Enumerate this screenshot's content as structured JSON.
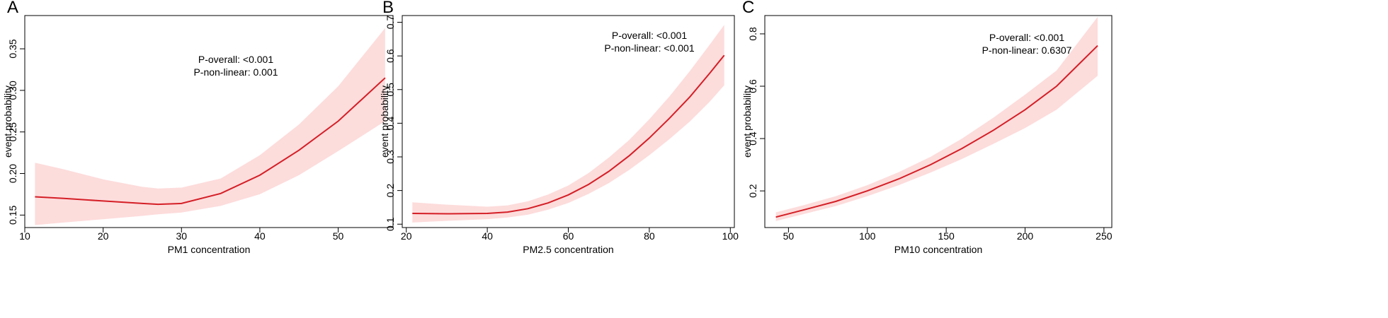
{
  "colors": {
    "line": "#d41f26",
    "band": "#fddcdc",
    "axis": "#000000"
  },
  "chart_data": [
    {
      "panel": "A",
      "type": "line",
      "xlabel": "PM1 concentration",
      "ylabel": "event probability",
      "xlim": [
        10,
        57
      ],
      "ylim": [
        0.135,
        0.39
      ],
      "xticks": [
        10,
        20,
        30,
        40,
        50
      ],
      "yticks": [
        0.15,
        0.2,
        0.25,
        0.3,
        0.35
      ],
      "ytick_labels": [
        "0.15",
        "0.20",
        "0.25",
        "0.30",
        "0.35"
      ],
      "annotations": [
        "P-overall: <0.001",
        "P-non-linear: 0.001"
      ],
      "series": [
        {
          "x": [
            11.3,
            15,
            20,
            25,
            27,
            30,
            35,
            40,
            45,
            50,
            56
          ],
          "y": [
            0.172,
            0.17,
            0.167,
            0.164,
            0.163,
            0.164,
            0.176,
            0.198,
            0.228,
            0.263,
            0.315
          ],
          "lower": [
            0.138,
            0.141,
            0.145,
            0.149,
            0.151,
            0.153,
            0.161,
            0.175,
            0.198,
            0.227,
            0.263
          ],
          "upper": [
            0.213,
            0.205,
            0.193,
            0.184,
            0.182,
            0.183,
            0.194,
            0.222,
            0.259,
            0.305,
            0.375
          ]
        }
      ]
    },
    {
      "panel": "B",
      "type": "line",
      "xlabel": "PM2.5 concentration",
      "ylabel": "event probability",
      "xlim": [
        19,
        101
      ],
      "ylim": [
        0.09,
        0.72
      ],
      "xticks": [
        20,
        40,
        60,
        80,
        100
      ],
      "yticks": [
        0.1,
        0.2,
        0.3,
        0.4,
        0.5,
        0.6,
        0.7
      ],
      "ytick_labels": [
        "0.1",
        "0.2",
        "0.3",
        "0.4",
        "0.5",
        "0.6",
        "0.7"
      ],
      "annotations": [
        "P-overall: <0.001",
        "P-non-linear: <0.001"
      ],
      "series": [
        {
          "x": [
            21.5,
            30,
            40,
            45,
            50,
            55,
            60,
            65,
            70,
            75,
            80,
            85,
            90,
            95,
            98.5
          ],
          "y": [
            0.132,
            0.131,
            0.132,
            0.136,
            0.146,
            0.163,
            0.187,
            0.218,
            0.257,
            0.303,
            0.356,
            0.415,
            0.478,
            0.55,
            0.602
          ],
          "lower": [
            0.105,
            0.11,
            0.115,
            0.12,
            0.128,
            0.143,
            0.163,
            0.19,
            0.222,
            0.261,
            0.305,
            0.353,
            0.405,
            0.465,
            0.513
          ],
          "upper": [
            0.165,
            0.158,
            0.152,
            0.156,
            0.168,
            0.188,
            0.215,
            0.252,
            0.298,
            0.35,
            0.412,
            0.48,
            0.555,
            0.635,
            0.692
          ]
        }
      ]
    },
    {
      "panel": "C",
      "type": "line",
      "xlabel": "PM10 concentration",
      "ylabel": "event probability",
      "xlim": [
        35,
        255
      ],
      "ylim": [
        0.06,
        0.87
      ],
      "xticks": [
        50,
        100,
        150,
        200,
        250
      ],
      "yticks": [
        0.2,
        0.4,
        0.6,
        0.8
      ],
      "ytick_labels": [
        "0.2",
        "0.4",
        "0.6",
        "0.8"
      ],
      "annotations": [
        "P-overall: <0.001",
        "P-non-linear: 0.6307"
      ],
      "series": [
        {
          "x": [
            42,
            60,
            80,
            100,
            120,
            140,
            160,
            180,
            200,
            220,
            246
          ],
          "y": [
            0.1,
            0.128,
            0.16,
            0.2,
            0.246,
            0.3,
            0.362,
            0.432,
            0.51,
            0.6,
            0.755
          ],
          "lower": [
            0.085,
            0.112,
            0.142,
            0.18,
            0.222,
            0.27,
            0.322,
            0.38,
            0.44,
            0.51,
            0.64
          ],
          "upper": [
            0.118,
            0.146,
            0.18,
            0.222,
            0.272,
            0.33,
            0.4,
            0.48,
            0.568,
            0.66,
            0.865
          ]
        }
      ]
    }
  ]
}
